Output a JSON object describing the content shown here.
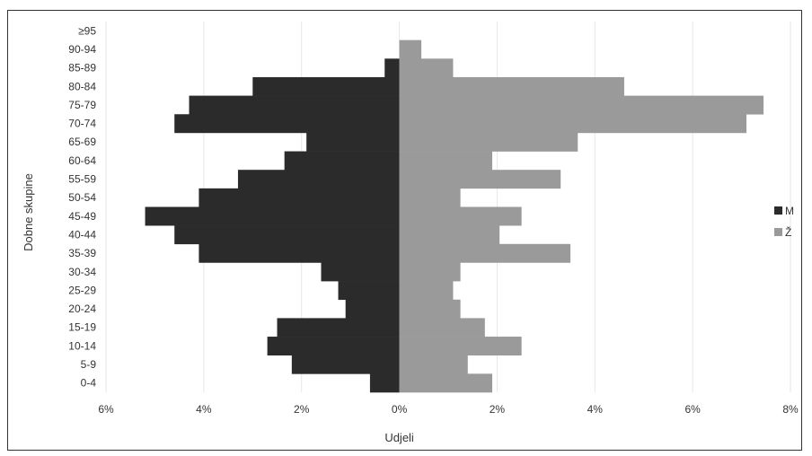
{
  "chart_data": {
    "type": "bar",
    "orientation": "horizontal",
    "categories": [
      "0-4",
      "5-9",
      "10-14",
      "15-19",
      "20-24",
      "25-29",
      "30-34",
      "35-39",
      "40-44",
      "45-49",
      "50-54",
      "55-59",
      "60-64",
      "65-69",
      "70-74",
      "75-79",
      "80-84",
      "85-89",
      "90-94",
      "≥95"
    ],
    "series": [
      {
        "name": "M",
        "color": "#2b2b2b",
        "values": [
          0.6,
          2.2,
          2.7,
          2.5,
          1.1,
          1.25,
          1.6,
          4.1,
          4.6,
          5.2,
          4.1,
          3.3,
          2.35,
          1.9,
          4.6,
          4.3,
          3.0,
          0.3,
          0,
          0
        ]
      },
      {
        "name": "Ž",
        "color": "#9a9a9a",
        "values": [
          1.9,
          1.4,
          2.5,
          1.75,
          1.25,
          1.1,
          1.25,
          3.5,
          2.05,
          2.5,
          1.25,
          3.3,
          1.9,
          3.65,
          7.1,
          7.45,
          4.6,
          1.1,
          0.45,
          0
        ]
      }
    ],
    "x_tick_labels": [
      "6%",
      "4%",
      "2%",
      "0%",
      "2%",
      "4%",
      "6%",
      "8%"
    ],
    "x_ticks": [
      -6,
      -4,
      -2,
      0,
      2,
      4,
      6,
      8
    ],
    "xlim": [
      -6,
      8
    ],
    "xlabel": "Udjeli",
    "ylabel": "Dobne skupine",
    "grid": true,
    "legend_position": "right"
  }
}
